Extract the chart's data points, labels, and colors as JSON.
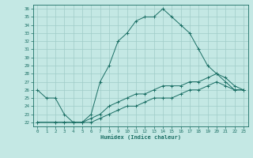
{
  "xlabel": "Humidex (Indice chaleur)",
  "background_color": "#c4e8e4",
  "grid_color": "#a0ccc8",
  "line_color": "#1a6e64",
  "xlim": [
    -0.5,
    23.5
  ],
  "ylim": [
    21.5,
    36.5
  ],
  "x_ticks": [
    0,
    1,
    2,
    3,
    4,
    5,
    6,
    7,
    8,
    9,
    10,
    11,
    12,
    13,
    14,
    15,
    16,
    17,
    18,
    19,
    20,
    21,
    22,
    23
  ],
  "y_ticks": [
    22,
    23,
    24,
    25,
    26,
    27,
    28,
    29,
    30,
    31,
    32,
    33,
    34,
    35,
    36
  ],
  "series": [
    {
      "x": [
        0,
        1,
        2,
        3,
        4,
        5,
        6,
        7,
        8,
        9,
        10,
        11,
        12,
        13,
        14,
        15,
        16,
        17,
        18,
        19,
        20,
        21,
        22,
        23
      ],
      "y": [
        26,
        25,
        25,
        23,
        22,
        22,
        23,
        27,
        29,
        32,
        33,
        34.5,
        35,
        35,
        36,
        35,
        34,
        33,
        31,
        29,
        28,
        27,
        26,
        26
      ]
    },
    {
      "x": [
        0,
        2,
        3,
        4,
        5,
        6,
        7,
        8,
        9,
        10,
        11,
        12,
        13,
        14,
        15,
        16,
        17,
        18,
        19,
        20,
        21,
        22,
        23
      ],
      "y": [
        22,
        22,
        22,
        22,
        22,
        22.5,
        23,
        24,
        24.5,
        25,
        25.5,
        25.5,
        26,
        26.5,
        26.5,
        26.5,
        27,
        27,
        27.5,
        28,
        27.5,
        26.5,
        26
      ]
    },
    {
      "x": [
        0,
        2,
        3,
        4,
        5,
        6,
        7,
        8,
        9,
        10,
        11,
        12,
        13,
        14,
        15,
        16,
        17,
        18,
        19,
        20,
        21,
        22,
        23
      ],
      "y": [
        22,
        22,
        22,
        22,
        22,
        22,
        22.5,
        23,
        23.5,
        24,
        24,
        24.5,
        25,
        25,
        25,
        25.5,
        26,
        26,
        26.5,
        27,
        26.5,
        26,
        26
      ]
    }
  ]
}
